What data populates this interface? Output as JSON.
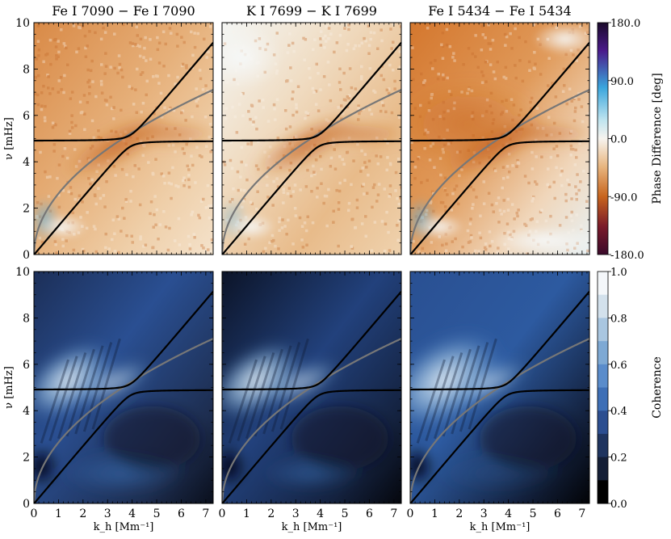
{
  "chart_data": {
    "type": "heatmap",
    "columns": [
      {
        "title": "Fe I 7090 − Fe I 7090"
      },
      {
        "title": "K I 7699 − K I 7699"
      },
      {
        "title": "Fe I 5434 − Fe I 5434"
      }
    ],
    "rows": [
      {
        "name": "phase",
        "colorbar": {
          "label": "Phase Difference [deg]",
          "range": [
            -180,
            180
          ],
          "ticks": [
            "180.0",
            "90.0",
            "0.0",
            "-90.0",
            "-180.0"
          ]
        }
      },
      {
        "name": "coherence",
        "colorbar": {
          "label": "Coherence",
          "range": [
            0,
            1
          ],
          "ticks": [
            "1.0",
            "0.8",
            "0.6",
            "0.4",
            "0.2",
            "0.0"
          ]
        }
      }
    ],
    "xlabel": "k_h [Mm⁻¹]",
    "ylabel": "ν [mHz]",
    "xlim": [
      0,
      7.3
    ],
    "ylim": [
      0,
      10
    ],
    "xticks": [
      0,
      1,
      2,
      3,
      4,
      5,
      6,
      7
    ],
    "yticks": [
      0,
      2,
      4,
      6,
      8,
      10
    ],
    "overlay_curves": [
      {
        "name": "acoustic-branch",
        "color": "#000000",
        "desc": "lower dispersion branch rising from origin, approaching ~4.9 mHz"
      },
      {
        "name": "gravity-branch",
        "color": "#000000",
        "desc": "upper dispersion branch flat near ~4.9 mHz then rising"
      },
      {
        "name": "lamb-f-mode",
        "color": "#777777",
        "desc": "gray curve rising from origin to ~7 mHz at k_h = 7.3"
      }
    ],
    "cutoff_frequency_mHz": 4.9,
    "crossing_kh": 3.9
  },
  "colors": {
    "phase_negative": "#c8651e",
    "phase_zero": "#f7f4ef",
    "phase_positive": "#3aa6dd",
    "coherence_low": "#000000",
    "coherence_mid": "#2e5ea8",
    "coherence_high": "#f4f7fa"
  }
}
